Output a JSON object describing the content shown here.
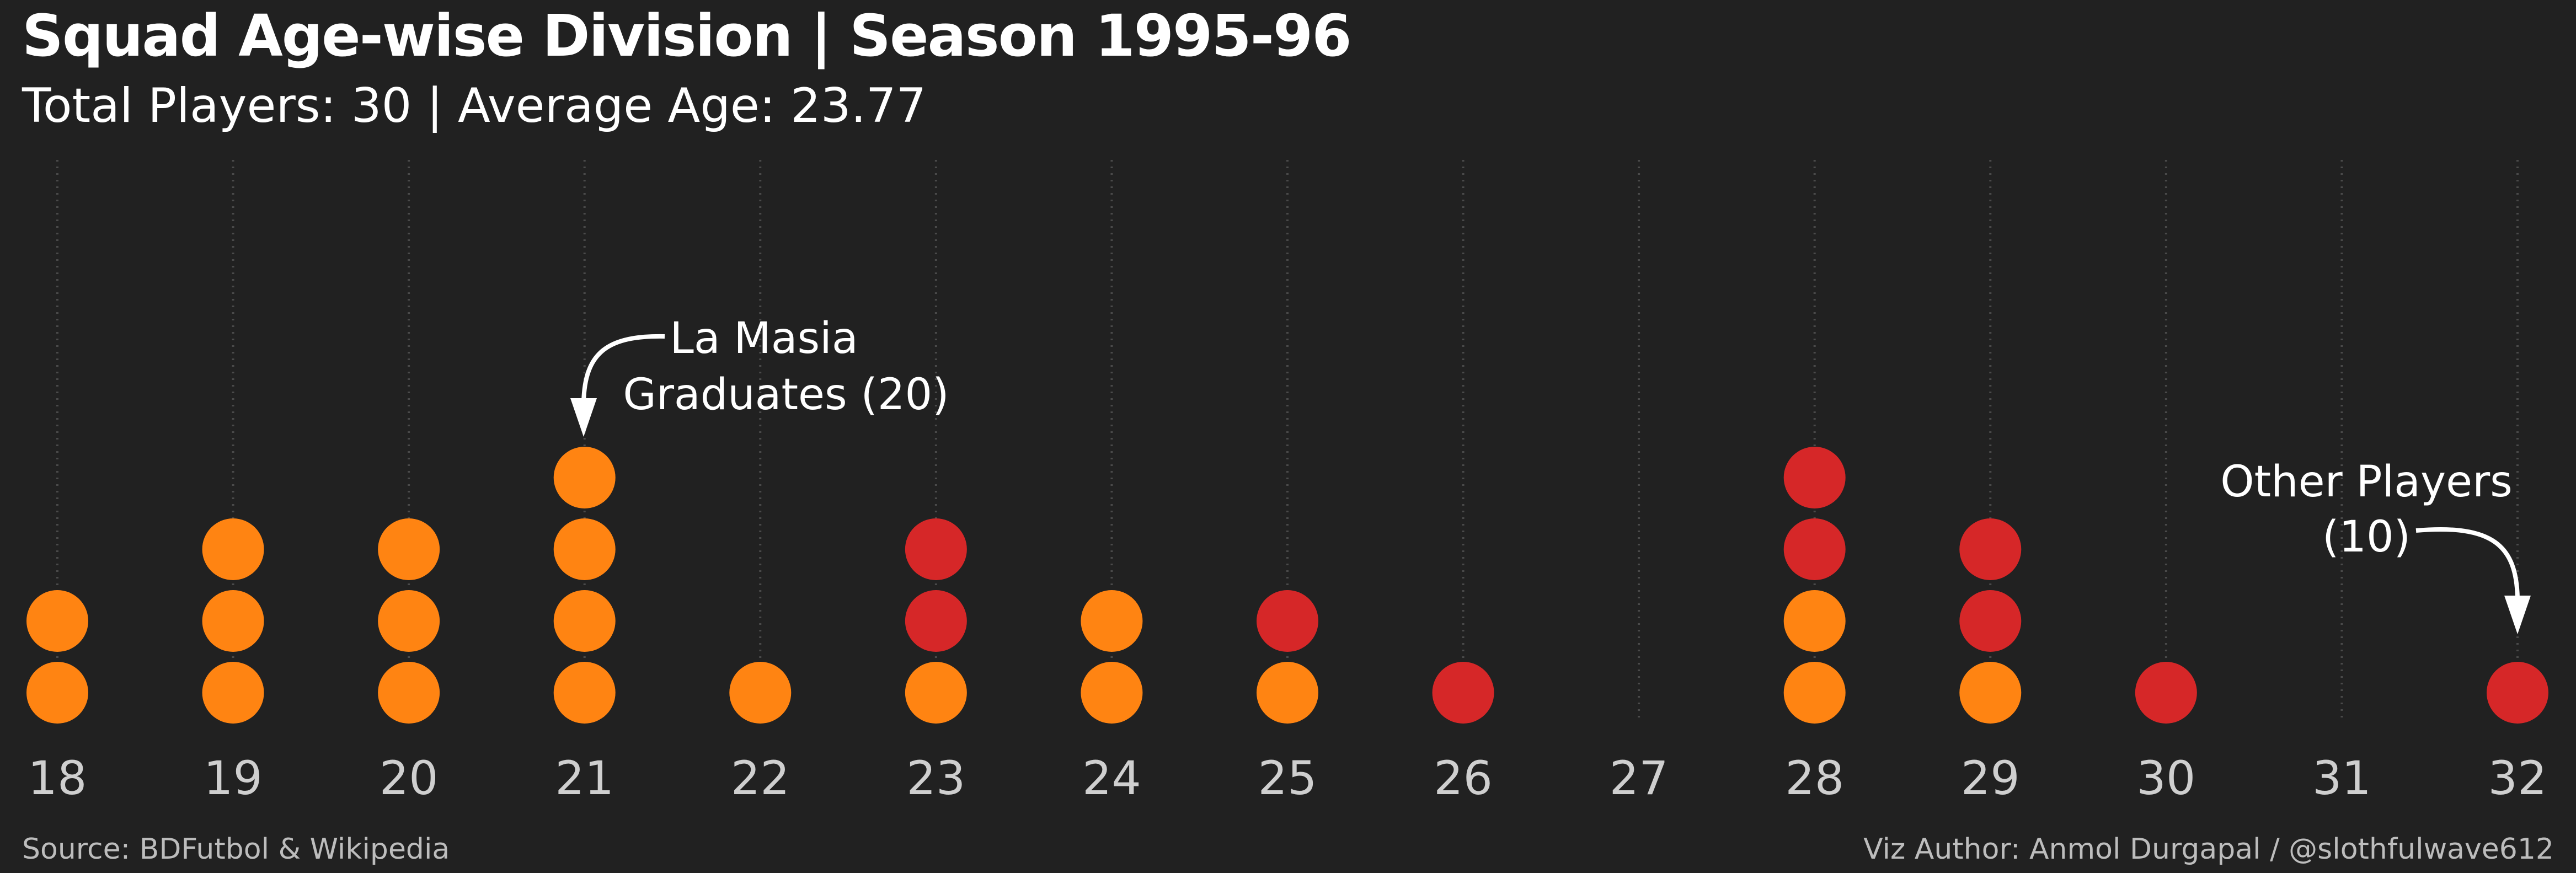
{
  "header": {
    "title": "Squad Age-wise Division | Season 1995-96",
    "subtitle": "Total Players: 30 | Average Age: 23.77"
  },
  "footer": {
    "source": "Source: BDFutbol & Wikipedia",
    "author": "Viz Author: Anmol Durgapal / @slothfulwave612"
  },
  "chart_data": {
    "type": "scatter",
    "title": "Squad Age-wise Division | Season 1995-96",
    "subtitle": "Total Players: 30 | Average Age: 23.77",
    "xlabel": "",
    "ylabel": "",
    "x_ticks": [
      18,
      19,
      20,
      21,
      22,
      23,
      24,
      25,
      26,
      27,
      28,
      29,
      30,
      31,
      32
    ],
    "xlim": [
      18,
      32
    ],
    "grid": "vertical dotted lines",
    "series": [
      {
        "name": "La Masia Graduates (20)",
        "color": "#ff8412",
        "ages": [
          18,
          19,
          20,
          21,
          22,
          23,
          24,
          25,
          28,
          29
        ],
        "counts": [
          2,
          3,
          3,
          4,
          1,
          1,
          2,
          1,
          2,
          1
        ]
      },
      {
        "name": "Other Players (10)",
        "color": "#d62728",
        "ages": [
          23,
          25,
          26,
          28,
          29,
          30,
          32
        ],
        "counts": [
          2,
          1,
          1,
          2,
          2,
          1,
          1
        ]
      }
    ],
    "annotations": [
      {
        "line1": "La Masia",
        "line2": "Graduates (20)",
        "age": 21
      },
      {
        "line1": "Other Players",
        "line2": "(10)",
        "age": 32
      }
    ]
  }
}
